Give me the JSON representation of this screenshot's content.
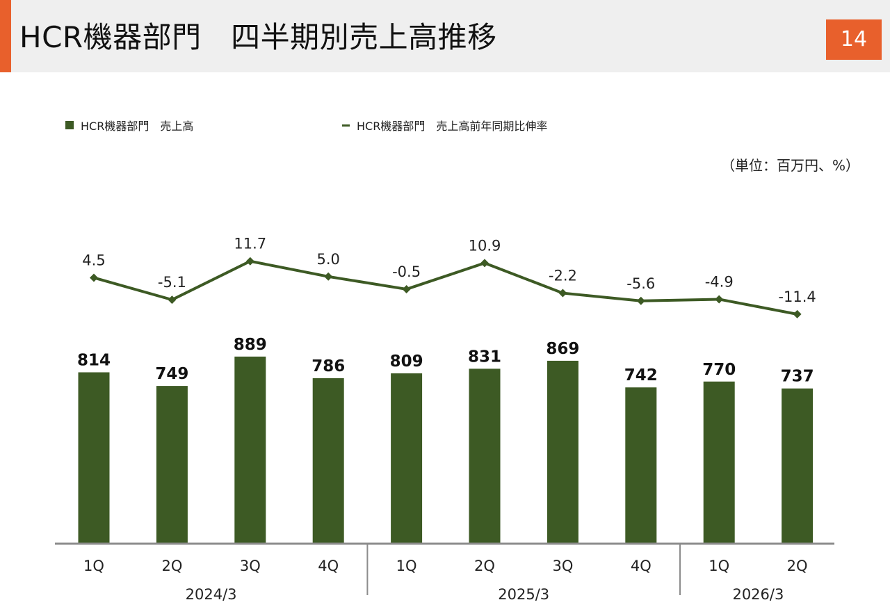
{
  "header": {
    "title": "HCR機器部門　四半期別売上高推移",
    "page_number": "14"
  },
  "colors": {
    "accent": "#e8602c",
    "bar": "#3d5a24",
    "line": "#3d5a24",
    "axis": "#8c8c8c"
  },
  "chart_data": {
    "type": "bar",
    "title": "HCR機器部門　四半期別売上高推移",
    "unit_note": "（単位：百万円、%）",
    "categories": [
      "1Q",
      "2Q",
      "3Q",
      "4Q",
      "1Q",
      "2Q",
      "3Q",
      "4Q",
      "1Q",
      "2Q"
    ],
    "groups": [
      {
        "label": "2024/3",
        "count": 4
      },
      {
        "label": "2025/3",
        "count": 4
      },
      {
        "label": "2026/3",
        "count": 2
      }
    ],
    "series": [
      {
        "name": "HCR機器部門　売上高",
        "type": "bar",
        "values": [
          814,
          749,
          889,
          786,
          809,
          831,
          869,
          742,
          770,
          737
        ],
        "labels": [
          "814",
          "749",
          "889",
          "786",
          "809",
          "831",
          "869",
          "742",
          "770",
          "737"
        ]
      },
      {
        "name": "HCR機器部門　売上高前年同期比伸率",
        "type": "line",
        "values": [
          4.5,
          -5.1,
          11.7,
          5.0,
          -0.5,
          10.9,
          -2.2,
          -5.6,
          -4.9,
          -11.4
        ],
        "labels": [
          "4.5",
          "-5.1",
          "11.7",
          "5.0",
          "-0.5",
          "10.9",
          "-2.2",
          "-5.6",
          "-4.9",
          "-11.4"
        ]
      }
    ],
    "legend_position": "top-left",
    "grid": false
  }
}
